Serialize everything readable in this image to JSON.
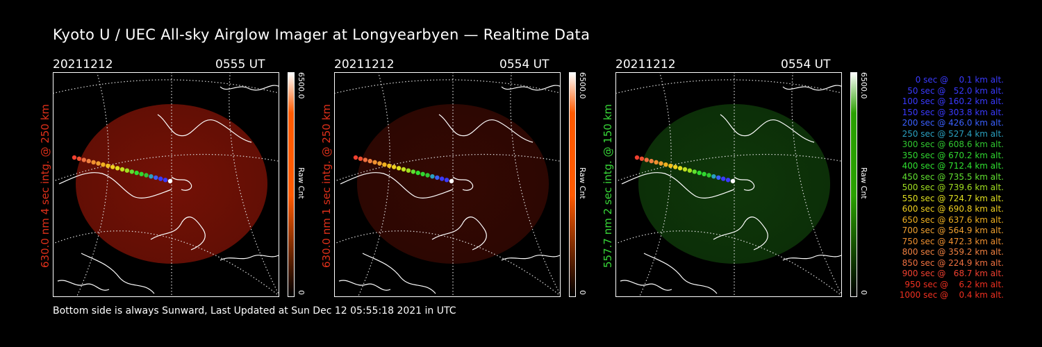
{
  "title": "Kyoto U / UEC All-sky Airglow Imager at Longyearbyen — Realtime Data",
  "panels": [
    {
      "date": "20211212",
      "time": "0555 UT",
      "ylabel": "630.0 nm 4 sec intg. @ 250 km",
      "ylabel_color": "#e0301a",
      "cbar_max": "6500.0",
      "cbar_min": "0",
      "cbar_label": "Raw Cnt",
      "cbar_color": "#ff5a00",
      "glow": "#7a1206",
      "glow_opacity": 0.95
    },
    {
      "date": "20211212",
      "time": "0554 UT",
      "ylabel": "630.0 nm 1 sec intg. @ 250 km",
      "ylabel_color": "#e0301a",
      "cbar_max": "6500.0",
      "cbar_min": "0",
      "cbar_label": "Raw Cnt",
      "cbar_color": "#ff5a00",
      "glow": "#3a0903",
      "glow_opacity": 0.9
    },
    {
      "date": "20211212",
      "time": "0554 UT",
      "ylabel": "557.7 nm 2 sec intg. @ 150 km",
      "ylabel_color": "#38d838",
      "cbar_max": "6500.0",
      "cbar_min": "0",
      "cbar_label": "Raw Cnt",
      "cbar_color": "#2aa000",
      "glow": "#0f3a0a",
      "glow_opacity": 0.95
    }
  ],
  "footer": "Bottom side is always Sunward, Last Updated at Sun Dec 12 05:55:18 2021 in UTC",
  "legend": [
    {
      "text": "0 sec @    0.1 km alt.",
      "color": "#3a3aff"
    },
    {
      "text": "50 sec @   52.0 km alt.",
      "color": "#3a3aff"
    },
    {
      "text": "100 sec @ 160.2 km alt.",
      "color": "#3a3aff"
    },
    {
      "text": "150 sec @ 303.8 km alt.",
      "color": "#3a3aff"
    },
    {
      "text": "200 sec @ 426.0 km alt.",
      "color": "#3a60ff"
    },
    {
      "text": "250 sec @ 527.4 km alt.",
      "color": "#2aa0c0"
    },
    {
      "text": "300 sec @ 608.6 km alt.",
      "color": "#30c830"
    },
    {
      "text": "350 sec @ 670.2 km alt.",
      "color": "#30d830"
    },
    {
      "text": "400 sec @ 712.4 km alt.",
      "color": "#30e030"
    },
    {
      "text": "450 sec @ 735.5 km alt.",
      "color": "#60e030"
    },
    {
      "text": "500 sec @ 739.6 km alt.",
      "color": "#a0e020"
    },
    {
      "text": "550 sec @ 724.7 km alt.",
      "color": "#e0e020"
    },
    {
      "text": "600 sec @ 690.8 km alt.",
      "color": "#f0d020"
    },
    {
      "text": "650 sec @ 637.6 km alt.",
      "color": "#f0b020"
    },
    {
      "text": "700 sec @ 564.9 km alt.",
      "color": "#f0a030"
    },
    {
      "text": "750 sec @ 472.3 km alt.",
      "color": "#f09030"
    },
    {
      "text": "800 sec @ 359.2 km alt.",
      "color": "#f08040"
    },
    {
      "text": "850 sec @ 224.9 km alt.",
      "color": "#f07040"
    },
    {
      "text": "900 sec @   68.7 km alt.",
      "color": "#f04030"
    },
    {
      "text": "950 sec @    6.2 km alt.",
      "color": "#f03020"
    },
    {
      "text": "1000 sec @    0.4 km alt.",
      "color": "#f03020"
    }
  ]
}
